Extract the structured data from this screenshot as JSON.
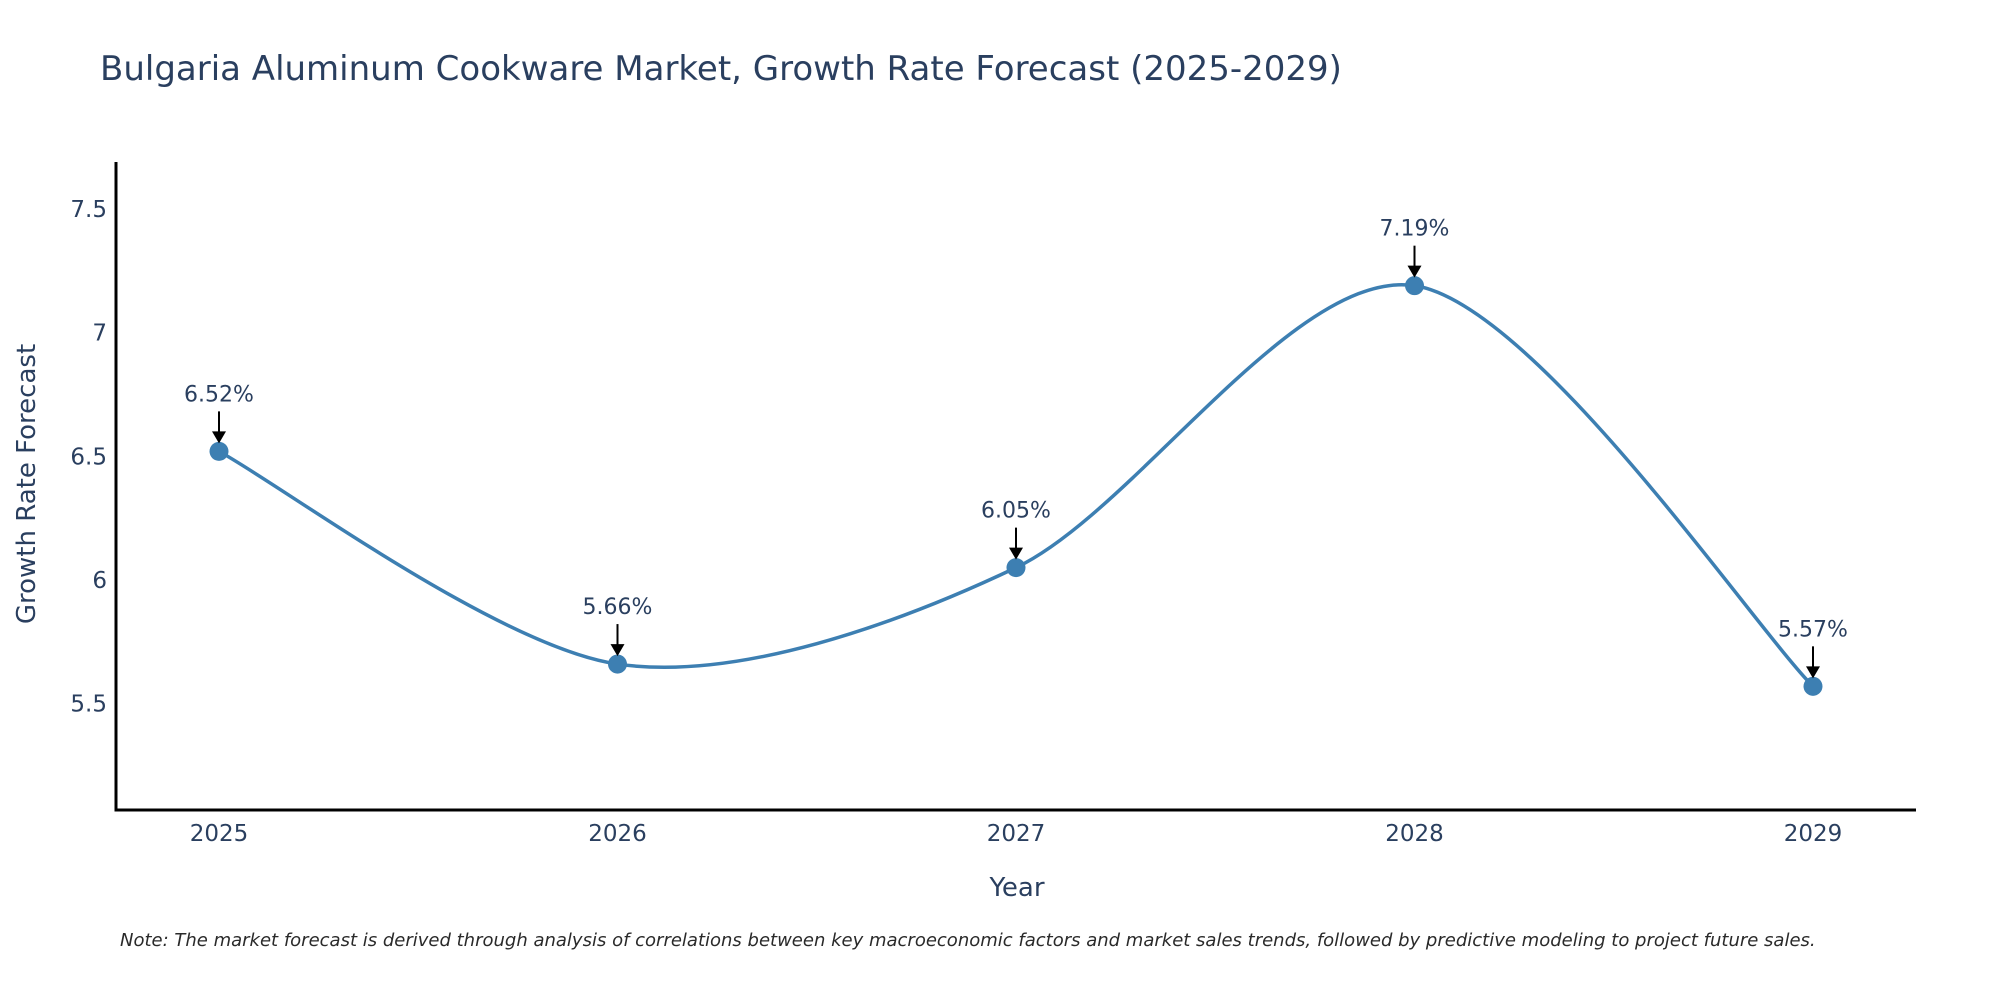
{
  "chart_data": {
    "type": "line",
    "title": "Bulgaria Aluminum Cookware Market, Growth Rate Forecast (2025-2029)",
    "xlabel": "Year",
    "ylabel": "Growth Rate Forecast",
    "categories": [
      "2025",
      "2026",
      "2027",
      "2028",
      "2029"
    ],
    "values": [
      6.52,
      5.66,
      6.05,
      7.19,
      5.57
    ],
    "data_labels": [
      "6.52%",
      "5.66%",
      "6.05%",
      "7.19%",
      "5.57%"
    ],
    "ylim": [
      5.07,
      7.69
    ],
    "yticks": [
      5.5,
      6,
      6.5,
      7,
      7.5
    ],
    "ytick_labels": [
      "5.5",
      "6",
      "6.5",
      "7",
      "7.5"
    ],
    "line_color": "#3d7fb2",
    "marker_color": "#3d7fb2",
    "grid": false,
    "legend": "none",
    "note": "Note: The market forecast is derived through analysis of correlations between key macroeconomic factors and market sales trends, followed by predictive modeling to project future sales."
  }
}
